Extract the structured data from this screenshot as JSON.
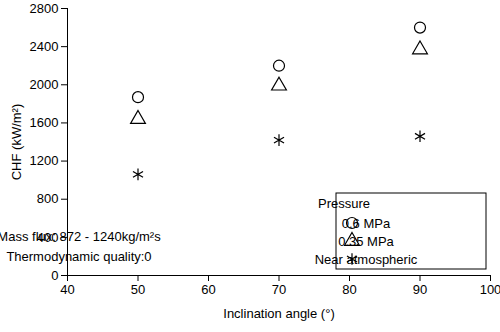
{
  "chart_data": {
    "type": "scatter",
    "x_label": "Inclination angle (°)",
    "y_label": "CHF (kW/m²)",
    "xlim": [
      40,
      100
    ],
    "xticks": [
      40,
      50,
      60,
      70,
      80,
      90,
      100
    ],
    "ylim": [
      0,
      2800
    ],
    "yticks": [
      0,
      400,
      800,
      1200,
      1600,
      2000,
      2400,
      2800
    ],
    "grid": false,
    "legend": "lower right",
    "legend_title": "Pressure",
    "annotations": [
      "Mass flux: 872 - 1240kg/m²s",
      "Thermodynamic quality:0"
    ],
    "x": [
      50,
      70,
      90
    ],
    "series": [
      {
        "name": "0.6 MPa",
        "color": "#000000",
        "marker": "circle",
        "values": [
          1870,
          2200,
          2600
        ]
      },
      {
        "name": "0.35 MPa",
        "color": "#000000",
        "marker": "triangle",
        "values": [
          1640,
          1990,
          2370
        ]
      },
      {
        "name": "Near atmospheric",
        "color": "#000000",
        "marker": "asterisk",
        "values": [
          1060,
          1420,
          1460
        ]
      }
    ]
  }
}
